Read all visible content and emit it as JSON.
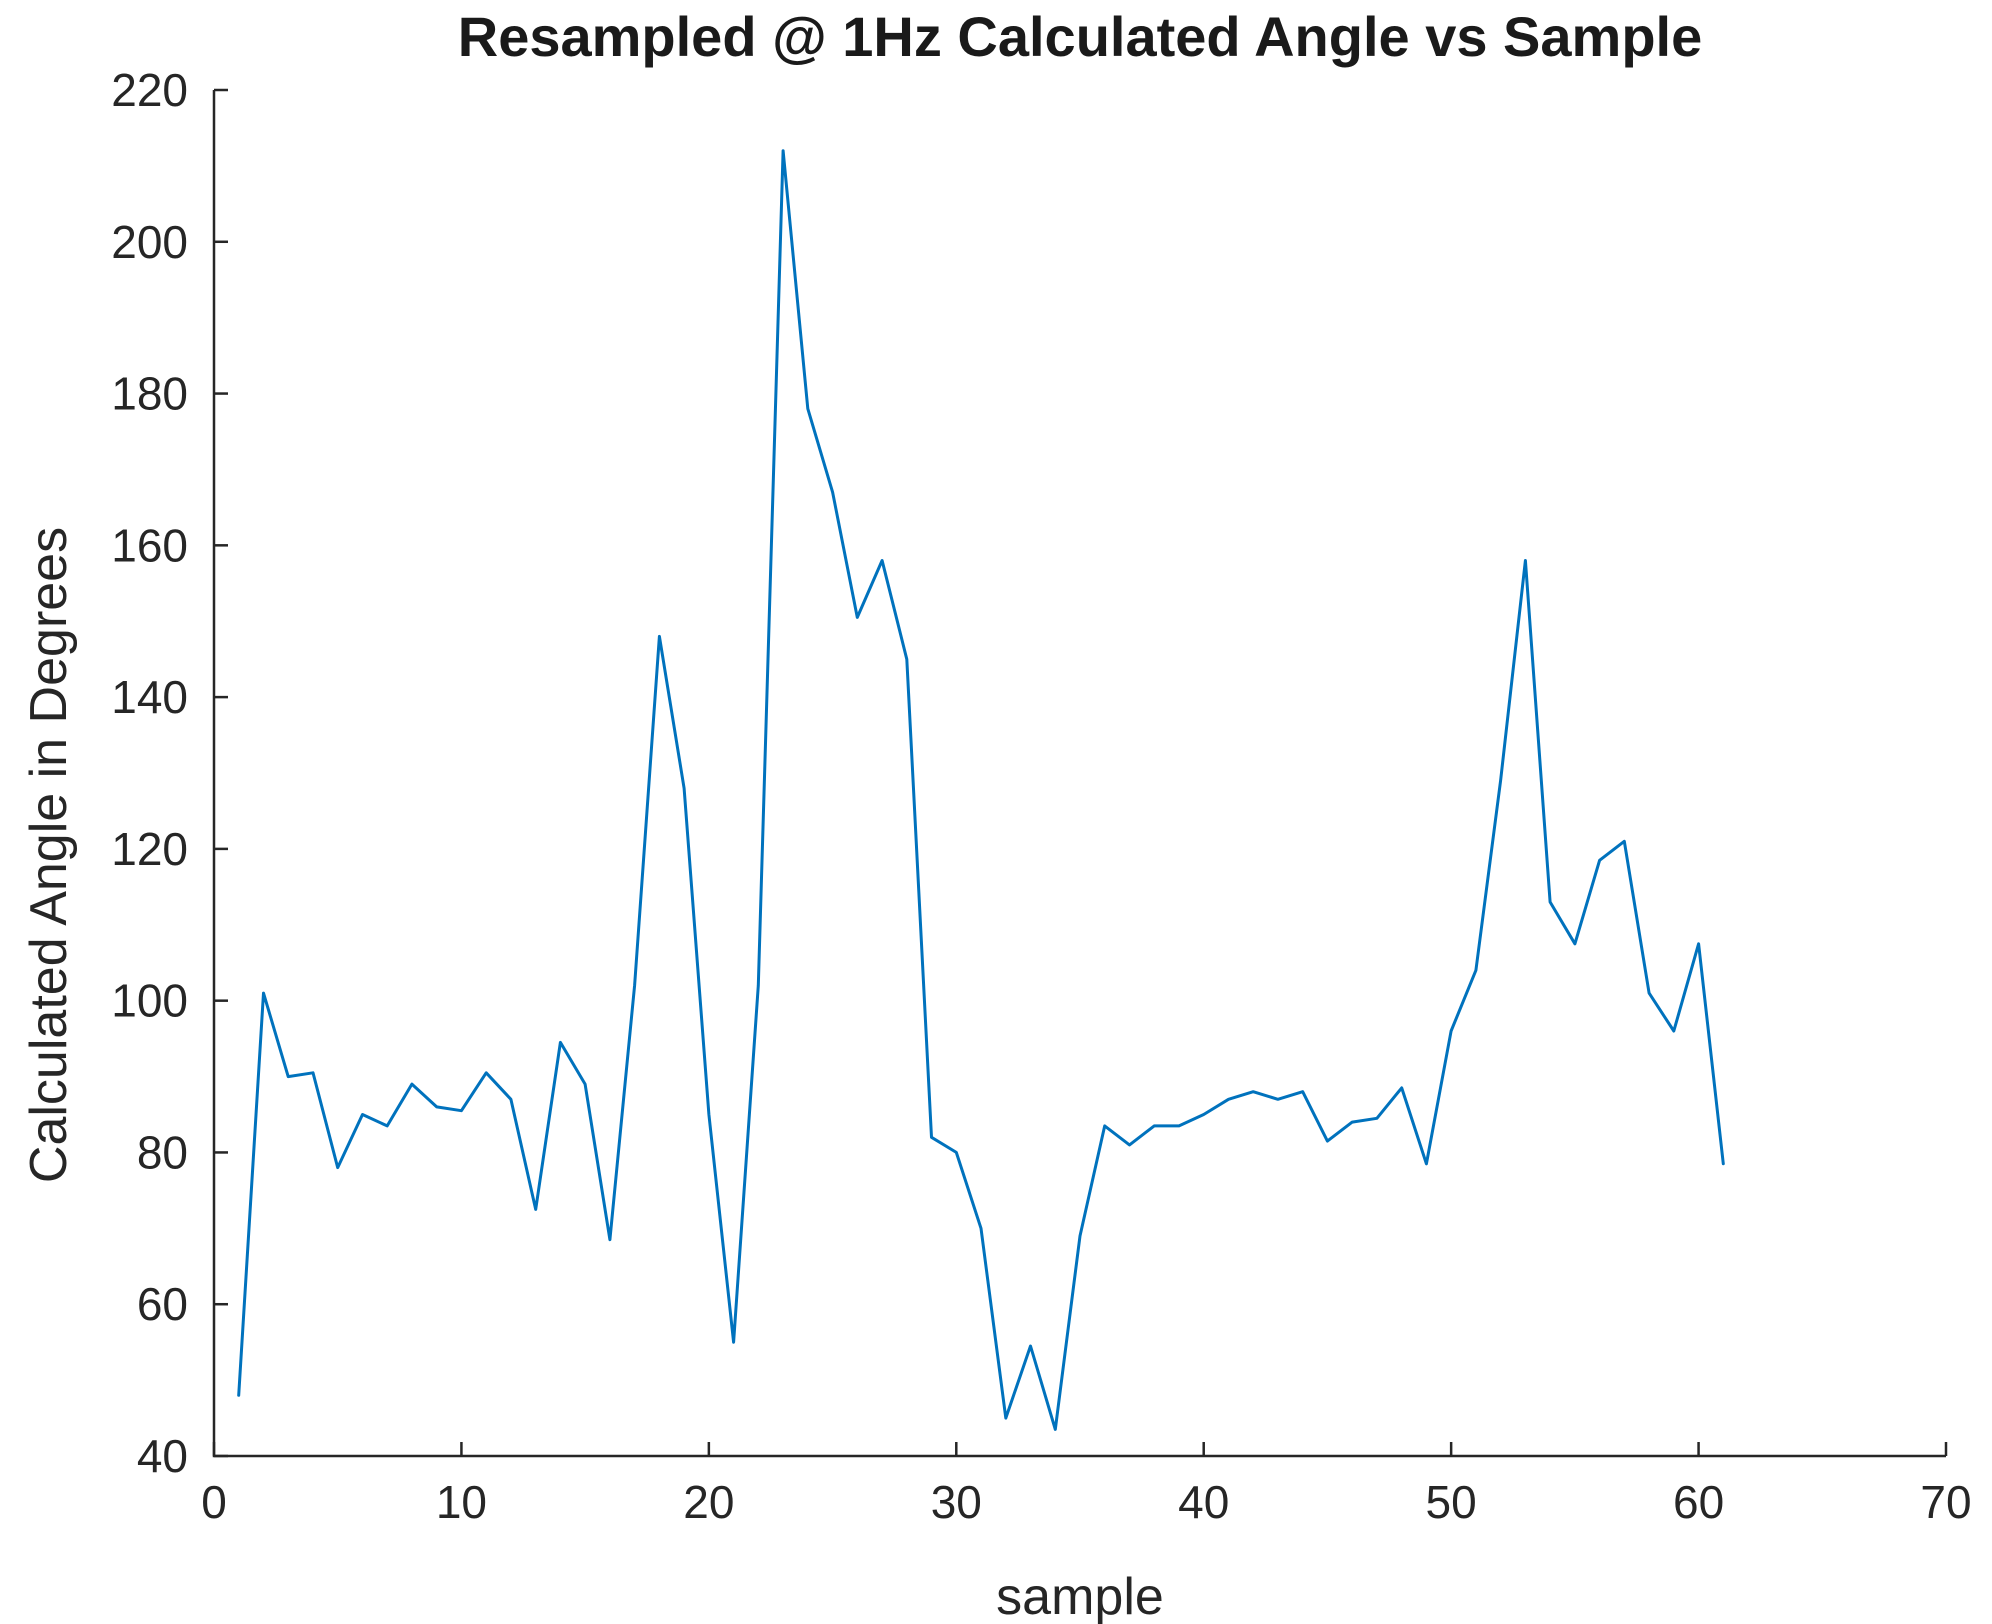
{
  "chart_data": {
    "type": "line",
    "title": "Resampled @ 1Hz Calculated Angle vs Sample",
    "xlabel": "sample",
    "ylabel": "Calculated Angle in Degrees",
    "xlim": [
      0,
      70
    ],
    "ylim": [
      40,
      220
    ],
    "xticks": [
      0,
      10,
      20,
      30,
      40,
      50,
      60,
      70
    ],
    "yticks": [
      40,
      60,
      80,
      100,
      120,
      140,
      160,
      180,
      200,
      220
    ],
    "grid": false,
    "series_color": "#0072bd",
    "x": [
      1,
      2,
      3,
      4,
      5,
      6,
      7,
      8,
      9,
      10,
      11,
      12,
      13,
      14,
      15,
      16,
      17,
      18,
      19,
      20,
      21,
      22,
      23,
      24,
      25,
      26,
      27,
      28,
      29,
      30,
      31,
      32,
      33,
      34,
      35,
      36,
      37,
      38,
      39,
      40,
      41,
      42,
      43,
      44,
      45,
      46,
      47,
      48,
      49,
      50,
      51,
      52,
      53,
      54,
      55,
      56,
      57,
      58,
      59,
      60,
      61
    ],
    "y": [
      48,
      101,
      90,
      90.5,
      78,
      85,
      83.5,
      89,
      86,
      85.5,
      90.5,
      87,
      72.5,
      94.5,
      89,
      68.5,
      102,
      148,
      128,
      85,
      55,
      102,
      212,
      178,
      167,
      150.5,
      158,
      145,
      82,
      80,
      70,
      45,
      54.5,
      43.5,
      69,
      83.5,
      81,
      83.5,
      83.5,
      85,
      87,
      88,
      87,
      88,
      81.5,
      84,
      84.5,
      88.5,
      78.5,
      96,
      104,
      129,
      158,
      113,
      107.5,
      118.5,
      121,
      101,
      96,
      107.5,
      78.5
    ]
  }
}
